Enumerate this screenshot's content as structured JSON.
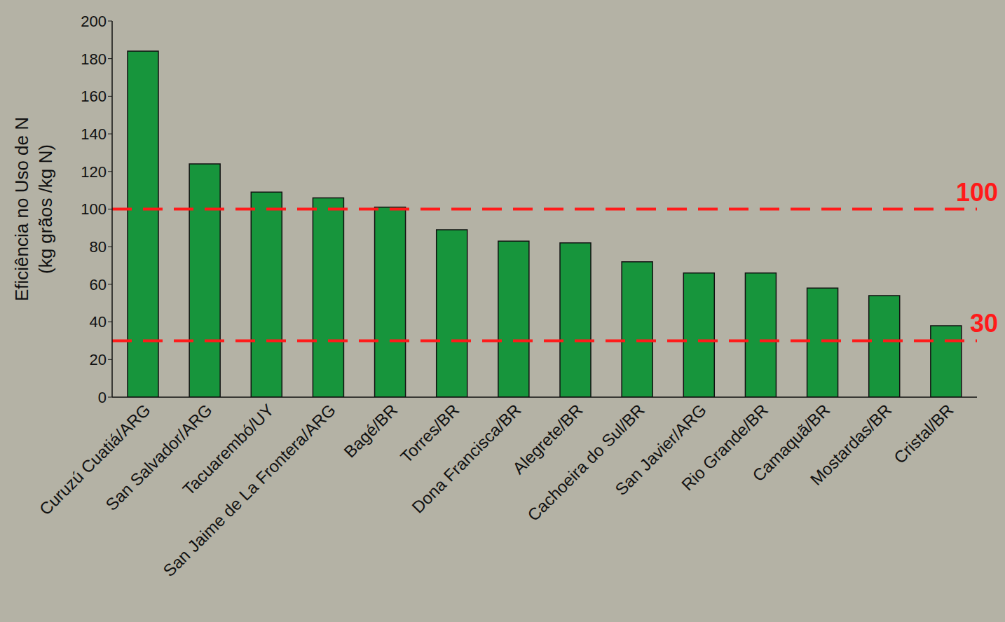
{
  "chart_data": {
    "type": "bar",
    "y_label": [
      "Eficiência  no Uso de N",
      "(kg grãos /kg N)"
    ],
    "categories": [
      "Curuzú Cuatiá/ARG",
      "San Salvador/ARG",
      "Tacuarembó/UY",
      "San Jaime de La Frontera/ARG",
      "Bagé/BR",
      "Torres/BR",
      "Dona Francisca/BR",
      "Alegrete/BR",
      "Cachoeira do Sul/BR",
      "San Javier/ARG",
      "Rio Grande/BR",
      "Camaquã/BR",
      "Mostardas/BR",
      "Cristal/BR"
    ],
    "values": [
      184,
      124,
      109,
      106,
      101,
      89,
      83,
      82,
      72,
      66,
      66,
      58,
      54,
      38
    ],
    "color": "#17953c",
    "ylim": [
      0,
      200
    ],
    "yticks": [
      0,
      20,
      40,
      60,
      80,
      100,
      120,
      140,
      160,
      180,
      200
    ],
    "grid": false,
    "reference_lines": [
      {
        "value": 100,
        "label": "100",
        "color": "#ff1a1a"
      },
      {
        "value": 30,
        "label": "30",
        "color": "#ff1a1a"
      }
    ]
  }
}
